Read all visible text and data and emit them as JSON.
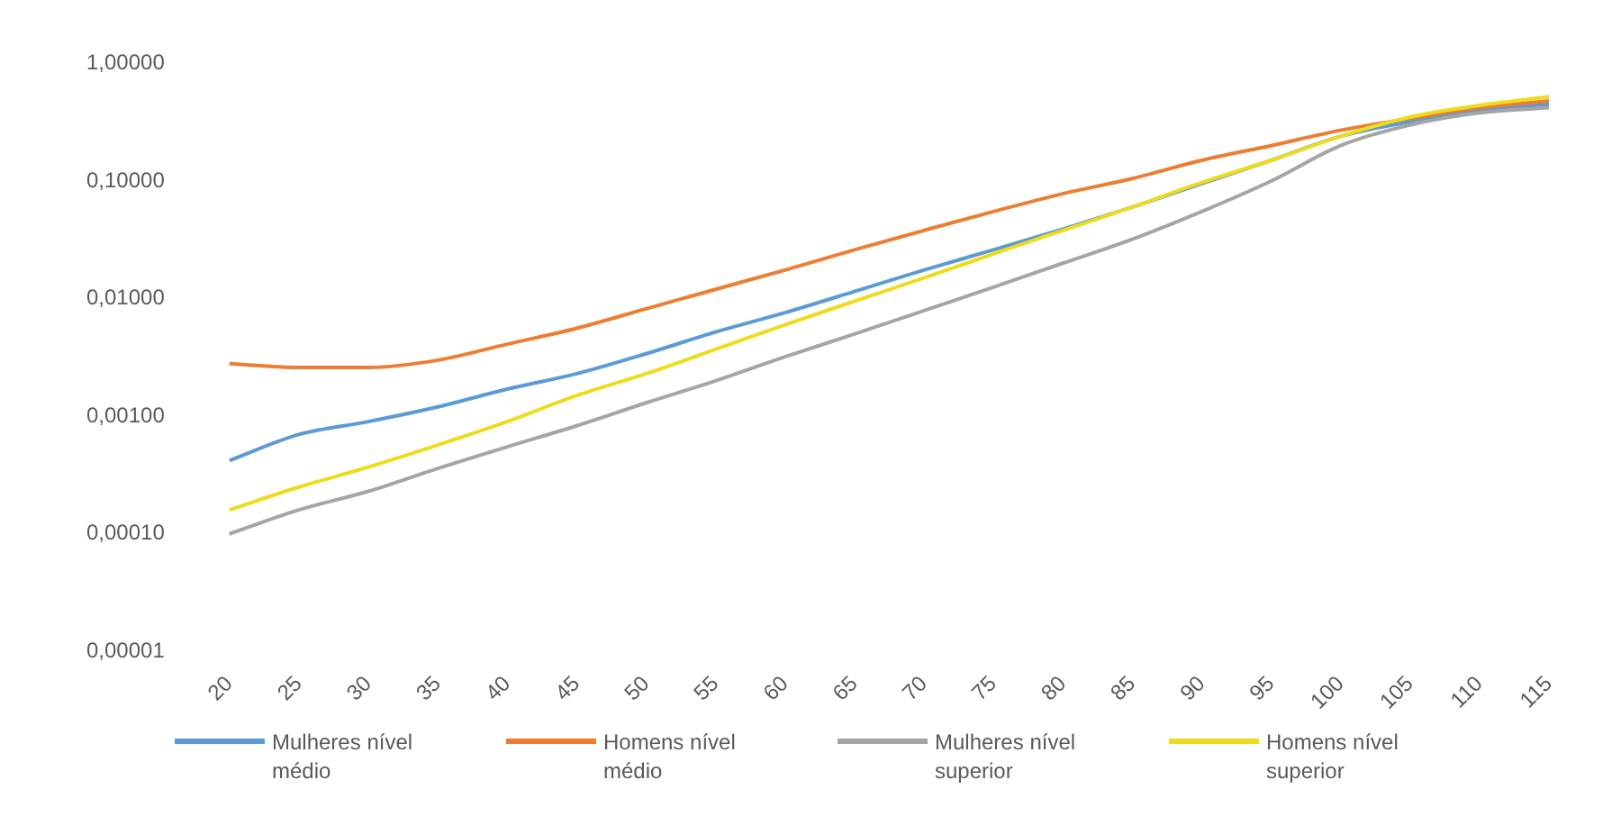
{
  "chart_data": {
    "type": "line",
    "categories": [
      "20",
      "25",
      "30",
      "35",
      "40",
      "45",
      "50",
      "55",
      "60",
      "65",
      "70",
      "75",
      "80",
      "85",
      "90",
      "95",
      "100",
      "105",
      "110",
      "115"
    ],
    "series": [
      {
        "name": "Mulheres nível médio",
        "color": "#5b9bd5",
        "values": [
          0.00042,
          0.0007,
          0.0009,
          0.0012,
          0.0017,
          0.0023,
          0.0034,
          0.0052,
          0.0076,
          0.0115,
          0.0175,
          0.026,
          0.039,
          0.06,
          0.095,
          0.15,
          0.24,
          0.32,
          0.4,
          0.45
        ]
      },
      {
        "name": "Homens nível médio",
        "color": "#ed7d31",
        "values": [
          0.0028,
          0.0026,
          0.0026,
          0.003,
          0.0041,
          0.0056,
          0.0082,
          0.012,
          0.0175,
          0.026,
          0.038,
          0.055,
          0.078,
          0.105,
          0.15,
          0.2,
          0.27,
          0.34,
          0.42,
          0.48
        ]
      },
      {
        "name": "Mulheres nível superior",
        "color": "#a5a5a5",
        "values": [
          0.0001,
          0.00016,
          0.00023,
          0.00036,
          0.00055,
          0.00083,
          0.0013,
          0.002,
          0.0032,
          0.005,
          0.0079,
          0.0125,
          0.02,
          0.032,
          0.055,
          0.1,
          0.2,
          0.3,
          0.38,
          0.42
        ]
      },
      {
        "name": "Homens nível superior",
        "color": "#eedc1c",
        "values": [
          0.00016,
          0.00025,
          0.00037,
          0.00057,
          0.0009,
          0.0015,
          0.0023,
          0.0037,
          0.006,
          0.0095,
          0.015,
          0.024,
          0.038,
          0.06,
          0.097,
          0.15,
          0.24,
          0.35,
          0.44,
          0.52
        ]
      }
    ],
    "log": "y",
    "ylim": [
      1e-05,
      1
    ],
    "yticks": [
      {
        "value": 1e-05,
        "label": "0,00001"
      },
      {
        "value": 0.0001,
        "label": "0,00010"
      },
      {
        "value": 0.001,
        "label": "0,00100"
      },
      {
        "value": 0.01,
        "label": "0,01000"
      },
      {
        "value": 0.1,
        "label": "0,10000"
      },
      {
        "value": 1,
        "label": "1,00000"
      }
    ],
    "grid": false,
    "legend": "bottom",
    "marker": "none",
    "line_style": "solid"
  }
}
